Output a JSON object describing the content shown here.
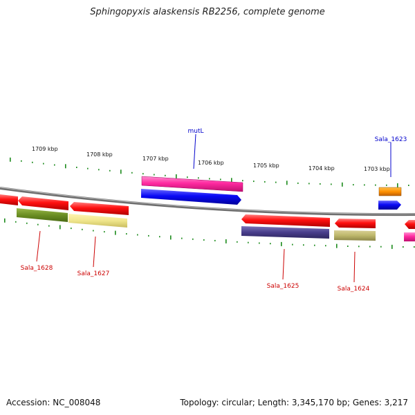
{
  "title": "Sphingopyxis alaskensis RB2256, complete genome",
  "footer": {
    "accession": "Accession: NC_008048",
    "summary": "Topology: circular; Length: 3,345,170 bp; Genes: 3,217"
  },
  "scale_labels": [
    "1709 kbp",
    "1708 kbp",
    "1707 kbp",
    "1706 kbp",
    "1705 kbp",
    "1704 kbp",
    "1703 kbp"
  ],
  "gene_labels": {
    "top": [
      "mutL",
      "Sala_1623"
    ],
    "bottom": [
      "Sala_1628",
      "Sala_1627",
      "Sala_1625",
      "Sala_1624"
    ]
  },
  "colors": {
    "forward_label": "#0000cc",
    "reverse_label": "#cc0000",
    "tick": "#1a8a1a",
    "backbone": "#888888"
  }
}
